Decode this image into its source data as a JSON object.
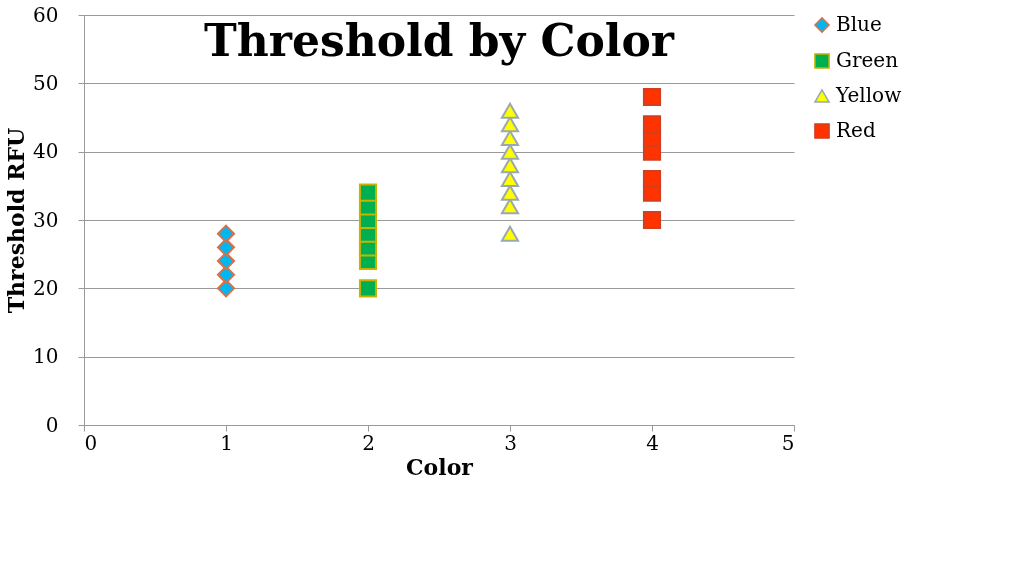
{
  "chart_data": {
    "type": "scatter",
    "title": "Threshold by Color",
    "xlabel": "Color",
    "ylabel": "Threshold RFU",
    "xlim": [
      0,
      5
    ],
    "xticks": [
      0,
      1,
      2,
      3,
      4,
      5
    ],
    "ylim": [
      0,
      60
    ],
    "yticks": [
      0,
      10,
      20,
      30,
      40,
      50,
      60
    ],
    "grid": "y",
    "legend": "right",
    "series": [
      {
        "name": "Blue",
        "color": "#00b8f0",
        "marker": "diamond",
        "x": [
          1,
          1,
          1,
          1,
          1
        ],
        "values": [
          20,
          22,
          24,
          26,
          28
        ]
      },
      {
        "name": "Green",
        "color": "#00b050",
        "marker": "square",
        "x": [
          2,
          2,
          2,
          2,
          2,
          2,
          2
        ],
        "values": [
          20,
          24,
          26,
          28,
          30,
          32,
          34
        ]
      },
      {
        "name": "Yellow",
        "color": "#ffff00",
        "marker": "triangle",
        "x": [
          3,
          3,
          3,
          3,
          3,
          3,
          3,
          3,
          3
        ],
        "values": [
          28,
          32,
          34,
          36,
          38,
          40,
          42,
          44,
          46
        ]
      },
      {
        "name": "Red",
        "color": "#ff3300",
        "marker": "square",
        "x": [
          4,
          4,
          4,
          4,
          4,
          4,
          4
        ],
        "values": [
          30,
          34,
          36,
          40,
          42,
          44,
          48
        ]
      }
    ]
  }
}
